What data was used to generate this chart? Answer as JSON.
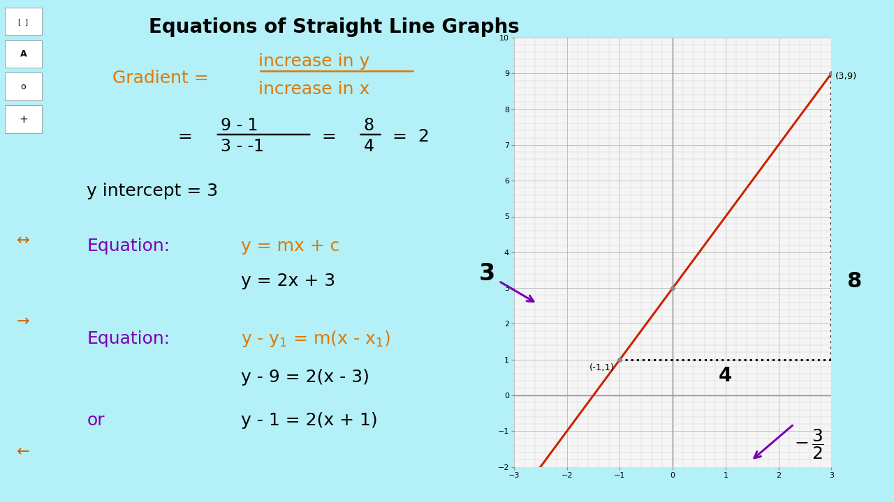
{
  "title": "Equations of Straight Line Graphs",
  "bg_color": "#b3f0f7",
  "sidebar_color": "#c8c8c8",
  "title_color": "#000000",
  "title_fontsize": 21,
  "orange_color": "#e07800",
  "purple_color": "#7b00b4",
  "black_color": "#000000",
  "graph_xlim": [
    -3,
    3
  ],
  "graph_ylim": [
    -2,
    10
  ],
  "line_slope": 2,
  "line_intercept": 3,
  "point1": [
    -1,
    1
  ],
  "point2": [
    3,
    9
  ],
  "graph_bg": "#f5f5f5",
  "line_color": "#cc2200",
  "arrow_color": "#7b00b4",
  "grid_minor_color": "#cccccc",
  "grid_major_color": "#aaaaaa"
}
